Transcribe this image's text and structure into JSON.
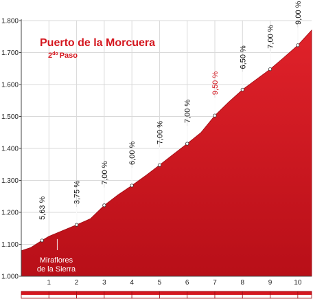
{
  "chart_data": {
    "type": "area",
    "title": "Puerto de la Morcuera",
    "subtitle": "2do Paso",
    "subtitle_parts": {
      "main": "2",
      "superscript": "do",
      "rest": "Paso"
    },
    "xlabel": "",
    "ylabel": "",
    "xlim": [
      0,
      10.5
    ],
    "ylim": [
      1000,
      1800
    ],
    "x_ticks": [
      "1",
      "2",
      "3",
      "4",
      "5",
      "6",
      "7",
      "8",
      "9",
      "10"
    ],
    "y_ticks": [
      "1.000",
      "1.100",
      "1.200",
      "1.300",
      "1.400",
      "1.500",
      "1.600",
      "1.700",
      "1.800"
    ],
    "grid": true,
    "fill_color": "#d4161e",
    "highlight_color": "#d4161e",
    "profile": [
      {
        "x": 0.0,
        "y": 1080
      },
      {
        "x": 0.35,
        "y": 1090
      },
      {
        "x": 0.75,
        "y": 1112
      },
      {
        "x": 1.0,
        "y": 1125
      },
      {
        "x": 2.0,
        "y": 1161
      },
      {
        "x": 2.5,
        "y": 1180
      },
      {
        "x": 3.0,
        "y": 1222
      },
      {
        "x": 3.5,
        "y": 1255
      },
      {
        "x": 4.0,
        "y": 1284
      },
      {
        "x": 4.5,
        "y": 1315
      },
      {
        "x": 5.0,
        "y": 1348
      },
      {
        "x": 5.5,
        "y": 1382
      },
      {
        "x": 6.0,
        "y": 1415
      },
      {
        "x": 6.5,
        "y": 1450
      },
      {
        "x": 7.0,
        "y": 1503
      },
      {
        "x": 7.5,
        "y": 1545
      },
      {
        "x": 8.0,
        "y": 1584
      },
      {
        "x": 8.5,
        "y": 1616
      },
      {
        "x": 9.0,
        "y": 1648
      },
      {
        "x": 9.5,
        "y": 1685
      },
      {
        "x": 10.0,
        "y": 1723
      },
      {
        "x": 10.5,
        "y": 1770
      }
    ],
    "gradients": [
      {
        "label": "5,63 %",
        "x": 0.75,
        "y": 1112,
        "highlight": false
      },
      {
        "label": "3,75 %",
        "x": 2.0,
        "y": 1161,
        "highlight": false
      },
      {
        "label": "7,00 %",
        "x": 3.0,
        "y": 1222,
        "highlight": false
      },
      {
        "label": "6,00 %",
        "x": 4.0,
        "y": 1284,
        "highlight": false
      },
      {
        "label": "7,00 %",
        "x": 5.0,
        "y": 1348,
        "highlight": false
      },
      {
        "label": "7,00 %",
        "x": 6.0,
        "y": 1415,
        "highlight": false
      },
      {
        "label": "9,50 %",
        "x": 7.0,
        "y": 1503,
        "highlight": true
      },
      {
        "label": "6,50 %",
        "x": 8.0,
        "y": 1584,
        "highlight": false
      },
      {
        "label": "7,00 %",
        "x": 9.0,
        "y": 1648,
        "highlight": false
      },
      {
        "label": "9,00 %",
        "x": 10.0,
        "y": 1723,
        "highlight": false
      }
    ],
    "annotations": [
      {
        "lines": [
          "Miraflores",
          "de la Sierra"
        ],
        "x": 1.3,
        "y": 1125
      }
    ]
  }
}
